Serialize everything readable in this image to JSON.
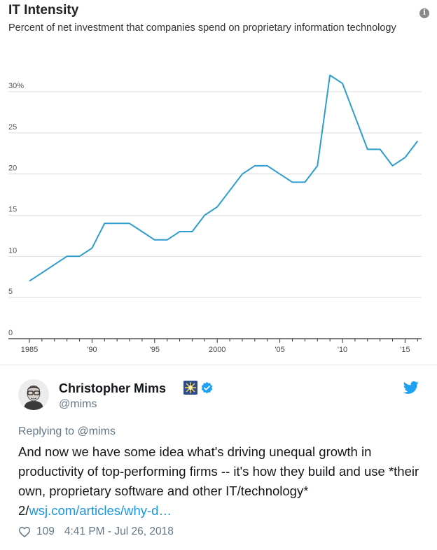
{
  "chart": {
    "title": "IT Intensity",
    "subtitle": "Percent of net investment that companies spend on proprietary information technology",
    "info_glyph": "i",
    "line_color": "#2e9ccc"
  },
  "chart_data": {
    "type": "line",
    "ylim": [
      0,
      35
    ],
    "y_ticks": [
      "0",
      "5",
      "10",
      "15",
      "20",
      "25",
      "30%"
    ],
    "x_ticks": [
      "1985",
      "'90",
      "'95",
      "2000",
      "'05",
      "'10",
      "'15"
    ],
    "grid": true,
    "series": [
      {
        "x": [
          1985,
          1986,
          1987,
          1988,
          1989,
          1990,
          1991,
          1992,
          1993,
          1994,
          1995,
          1996,
          1997,
          1998,
          1999,
          2000,
          2001,
          2002,
          2003,
          2004,
          2005,
          2006,
          2007,
          2008,
          2009,
          2010,
          2011,
          2012,
          2013,
          2014,
          2015,
          2016
        ],
        "values": [
          7,
          8,
          9,
          10,
          10,
          11,
          14,
          14,
          14,
          13,
          12,
          12,
          13,
          13,
          15,
          16,
          18,
          20,
          21,
          21,
          20,
          19,
          19,
          21,
          32,
          31,
          27,
          23,
          23,
          21,
          22,
          24
        ]
      }
    ]
  },
  "tweet": {
    "display_name": "Christopher Mims",
    "emoji_name": "sparkle-emoji",
    "verified_icon": "verified-badge-icon",
    "handle": "@mims",
    "replying_to": "Replying to @mims",
    "text_before_link": "And now we have some idea what's driving unequal growth in productivity of top-performing firms -- it's how they build and use *their own, proprietary software and other IT/technology* 2/",
    "link_text": "wsj.com/articles/why-d…",
    "like_count": "109",
    "timestamp": "4:41 PM - Jul 26, 2018",
    "brand_color": "#1da1f2",
    "link_color": "#1b95e0"
  }
}
